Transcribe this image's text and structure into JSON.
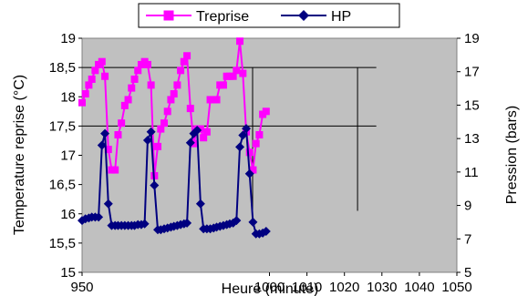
{
  "chart_data": {
    "type": "line",
    "xlabel": "Heure (minute)",
    "ylabel": "Temperature reprise (°C)",
    "y2label": "Pression (bars)",
    "xlim": [
      950,
      1050
    ],
    "ylim": [
      15,
      19
    ],
    "y2lim": [
      5,
      19
    ],
    "x_ticks": [
      "950",
      "1000",
      "1010",
      "1020",
      "1030",
      "1040",
      "1050"
    ],
    "y_ticks": [
      "15",
      "15,5",
      "16",
      "16,5",
      "17",
      "17,5",
      "18",
      "18,5",
      "19"
    ],
    "y2_ticks": [
      "5",
      "7",
      "9",
      "11",
      "13",
      "15",
      "17",
      "19"
    ],
    "grid": false,
    "plot_background": "#c0c0c0",
    "legend_position": "top",
    "reference_lines": [
      {
        "y": 18.5,
        "x_from": 950,
        "x_to": 1028.5
      },
      {
        "y": 17.5,
        "x_from": 950,
        "x_to": 1028.5
      },
      {
        "x": 995.5,
        "y_from": 16.05,
        "y_to": 18.5
      },
      {
        "x": 1023.5,
        "y_from": 16.05,
        "y_to": 18.5
      }
    ],
    "series": [
      {
        "name": "Treprise",
        "axis": "left",
        "color": "#ff00ff",
        "marker": "square",
        "x": [
          950,
          950.9,
          951.8,
          952.6,
          953.5,
          954.4,
          955.3,
          956.1,
          957,
          957.9,
          958.8,
          959.6,
          960.5,
          961.4,
          962.3,
          963.2,
          964,
          964.9,
          965.8,
          966.7,
          967.5,
          968.4,
          969.3,
          970.2,
          971,
          971.9,
          972.8,
          973.7,
          974.5,
          975.4,
          976.3,
          977.2,
          978,
          978.9,
          979.8,
          980.7,
          981.6,
          982.4,
          983.3,
          984.2,
          985.1,
          985.9,
          986.8,
          987.7,
          988.6,
          989.4,
          990.3,
          991.2,
          992.1,
          992.9,
          993.8,
          994.7,
          995.6,
          996.4,
          997.3,
          998.2,
          999.1
        ],
        "values": [
          17.9,
          18.05,
          18.2,
          18.3,
          18.45,
          18.55,
          18.6,
          18.35,
          17.1,
          16.75,
          16.75,
          17.35,
          17.55,
          17.85,
          17.95,
          18.15,
          18.3,
          18.45,
          18.55,
          18.6,
          18.55,
          18.2,
          16.65,
          17.15,
          17.45,
          17.55,
          17.75,
          17.95,
          18.05,
          18.2,
          18.45,
          18.6,
          18.7,
          17.8,
          17.2,
          17.45,
          17.45,
          17.3,
          17.4,
          17.95,
          17.95,
          17.95,
          18.2,
          18.2,
          18.35,
          18.35,
          18.35,
          18.45,
          18.95,
          18.4,
          17.4,
          17.05,
          16.75,
          17.2,
          17.35,
          17.7,
          17.75
        ]
      },
      {
        "name": "HP",
        "axis": "right",
        "color": "#000080",
        "marker": "diamond",
        "x": [
          950,
          950.9,
          951.8,
          952.6,
          953.5,
          954.4,
          955.3,
          956.1,
          957,
          957.9,
          958.8,
          959.6,
          960.5,
          961.4,
          962.3,
          963.2,
          964,
          964.9,
          965.8,
          966.7,
          967.5,
          968.4,
          969.3,
          970.2,
          971,
          971.9,
          972.8,
          973.7,
          974.5,
          975.4,
          976.3,
          977.2,
          978,
          978.9,
          979.8,
          980.7,
          981.6,
          982.4,
          983.3,
          984.2,
          985.1,
          985.9,
          986.8,
          987.7,
          988.6,
          989.4,
          990.3,
          991.2,
          992.1,
          992.9,
          993.8,
          994.7,
          995.6,
          996.4,
          997.3,
          998.2,
          999.1
        ],
        "values": [
          8.1,
          8.2,
          8.25,
          8.3,
          8.3,
          8.3,
          12.6,
          13.3,
          9.1,
          7.8,
          7.8,
          7.8,
          7.8,
          7.8,
          7.8,
          7.8,
          7.8,
          7.85,
          7.85,
          7.9,
          12.9,
          13.4,
          10.2,
          7.55,
          7.55,
          7.6,
          7.65,
          7.7,
          7.75,
          7.8,
          7.85,
          7.9,
          7.95,
          12.75,
          13.3,
          13.5,
          9.1,
          7.6,
          7.6,
          7.6,
          7.65,
          7.7,
          7.75,
          7.8,
          7.85,
          7.9,
          7.95,
          8.1,
          12.5,
          13.2,
          13.6,
          10.9,
          8.0,
          7.3,
          7.3,
          7.35,
          7.45
        ]
      }
    ]
  }
}
